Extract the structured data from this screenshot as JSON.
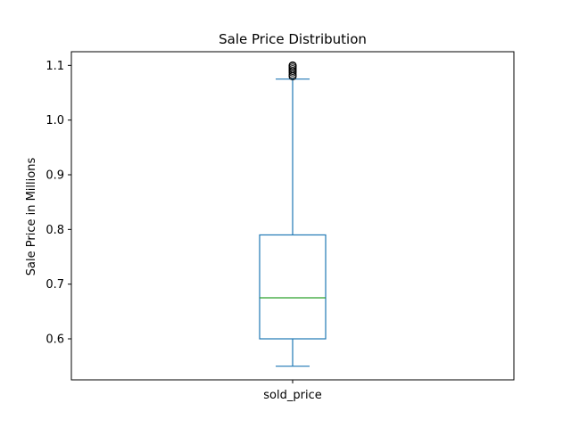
{
  "chart_data": {
    "type": "box",
    "title": "Sale Price Distribution",
    "xlabel": "",
    "ylabel": "Sale Price in Millions",
    "categories": [
      "sold_price"
    ],
    "boxes": [
      {
        "name": "sold_price",
        "whisker_low": 0.55,
        "q1": 0.6,
        "median": 0.675,
        "q3": 0.79,
        "whisker_high": 1.075,
        "outliers": [
          1.08,
          1.083,
          1.087,
          1.09,
          1.093,
          1.096,
          1.099,
          1.1
        ]
      }
    ],
    "ylim": [
      0.525,
      1.125
    ],
    "yticks": [
      0.6,
      0.7,
      0.8,
      0.9,
      1.0,
      1.1
    ],
    "ytick_labels": [
      "0.6",
      "0.7",
      "0.8",
      "0.9",
      "1.0",
      "1.1"
    ],
    "grid": false,
    "colors": {
      "box": "#1f77b4",
      "median": "#2ca02c",
      "axes": "#000000"
    }
  }
}
